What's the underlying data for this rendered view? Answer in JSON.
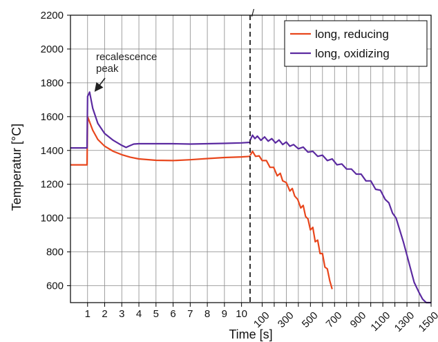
{
  "chart_data": {
    "type": "line",
    "title": "",
    "xlabel": "Time [s]",
    "ylabel": "Temperatur [°C]",
    "ylim": [
      500,
      2200
    ],
    "yticks": [
      "600",
      "800",
      "1000",
      "1200",
      "1400",
      "1600",
      "1800",
      "2000",
      "2200"
    ],
    "x_segments": [
      {
        "range": [
          0,
          10.5
        ],
        "ticks": [
          "1",
          "2",
          "3",
          "4",
          "5",
          "6",
          "7",
          "8",
          "9",
          "10"
        ]
      },
      {
        "range": [
          0,
          1500
        ],
        "ticks": [
          "100",
          "300",
          "500",
          "700",
          "900",
          "1100",
          "1300",
          "1500"
        ]
      }
    ],
    "axis_break_marker": "/",
    "grid": true,
    "legend": {
      "position": "top-right"
    },
    "series": [
      {
        "name": "long, reducing",
        "color": "#e8461c",
        "segment1": [
          [
            0,
            1315
          ],
          [
            0.97,
            1315
          ],
          [
            1.0,
            1600
          ],
          [
            1.3,
            1520
          ],
          [
            1.6,
            1465
          ],
          [
            2.0,
            1425
          ],
          [
            2.5,
            1395
          ],
          [
            3.0,
            1375
          ],
          [
            3.5,
            1360
          ],
          [
            4.0,
            1350
          ],
          [
            5.0,
            1342
          ],
          [
            6.0,
            1340
          ],
          [
            7.0,
            1345
          ],
          [
            8.0,
            1352
          ],
          [
            9.0,
            1358
          ],
          [
            10.0,
            1362
          ],
          [
            10.5,
            1365
          ]
        ],
        "segment2": [
          [
            0,
            1370
          ],
          [
            20,
            1395
          ],
          [
            45,
            1365
          ],
          [
            75,
            1368
          ],
          [
            100,
            1340
          ],
          [
            135,
            1340
          ],
          [
            165,
            1300
          ],
          [
            195,
            1300
          ],
          [
            225,
            1250
          ],
          [
            250,
            1265
          ],
          [
            270,
            1220
          ],
          [
            300,
            1210
          ],
          [
            330,
            1160
          ],
          [
            350,
            1175
          ],
          [
            370,
            1130
          ],
          [
            395,
            1110
          ],
          [
            420,
            1060
          ],
          [
            440,
            1075
          ],
          [
            460,
            1010
          ],
          [
            480,
            995
          ],
          [
            500,
            930
          ],
          [
            520,
            945
          ],
          [
            540,
            860
          ],
          [
            560,
            870
          ],
          [
            580,
            790
          ],
          [
            600,
            790
          ],
          [
            620,
            710
          ],
          [
            640,
            700
          ],
          [
            660,
            630
          ],
          [
            680,
            580
          ]
        ]
      },
      {
        "name": "long, oxidizing",
        "color": "#5b2aa0",
        "segment1": [
          [
            0,
            1415
          ],
          [
            0.97,
            1415
          ],
          [
            1.0,
            1720
          ],
          [
            1.12,
            1745
          ],
          [
            1.3,
            1650
          ],
          [
            1.6,
            1560
          ],
          [
            2.0,
            1500
          ],
          [
            2.5,
            1460
          ],
          [
            3.0,
            1430
          ],
          [
            3.25,
            1418
          ],
          [
            3.4,
            1425
          ],
          [
            3.7,
            1438
          ],
          [
            4.0,
            1440
          ],
          [
            5.0,
            1440
          ],
          [
            6.0,
            1440
          ],
          [
            7.0,
            1438
          ],
          [
            8.0,
            1440
          ],
          [
            9.0,
            1442
          ],
          [
            10.0,
            1445
          ],
          [
            10.5,
            1448
          ]
        ],
        "segment2": [
          [
            0,
            1460
          ],
          [
            20,
            1490
          ],
          [
            40,
            1470
          ],
          [
            60,
            1485
          ],
          [
            90,
            1460
          ],
          [
            120,
            1480
          ],
          [
            150,
            1455
          ],
          [
            180,
            1470
          ],
          [
            210,
            1445
          ],
          [
            240,
            1462
          ],
          [
            270,
            1435
          ],
          [
            300,
            1450
          ],
          [
            330,
            1425
          ],
          [
            360,
            1435
          ],
          [
            400,
            1410
          ],
          [
            440,
            1420
          ],
          [
            480,
            1390
          ],
          [
            520,
            1395
          ],
          [
            560,
            1365
          ],
          [
            600,
            1372
          ],
          [
            640,
            1340
          ],
          [
            680,
            1350
          ],
          [
            720,
            1315
          ],
          [
            760,
            1320
          ],
          [
            800,
            1290
          ],
          [
            840,
            1290
          ],
          [
            880,
            1260
          ],
          [
            920,
            1260
          ],
          [
            960,
            1220
          ],
          [
            1000,
            1220
          ],
          [
            1040,
            1170
          ],
          [
            1080,
            1165
          ],
          [
            1120,
            1110
          ],
          [
            1150,
            1090
          ],
          [
            1180,
            1030
          ],
          [
            1210,
            1000
          ],
          [
            1240,
            930
          ],
          [
            1270,
            860
          ],
          [
            1300,
            780
          ],
          [
            1330,
            700
          ],
          [
            1360,
            620
          ],
          [
            1400,
            560
          ],
          [
            1430,
            520
          ],
          [
            1460,
            500
          ],
          [
            1500,
            500
          ]
        ]
      }
    ],
    "annotations": [
      {
        "text_lines": [
          "recalescence",
          "peak"
        ],
        "points_to": {
          "segment": 1,
          "x": 1.12,
          "y": 1745
        }
      }
    ]
  }
}
